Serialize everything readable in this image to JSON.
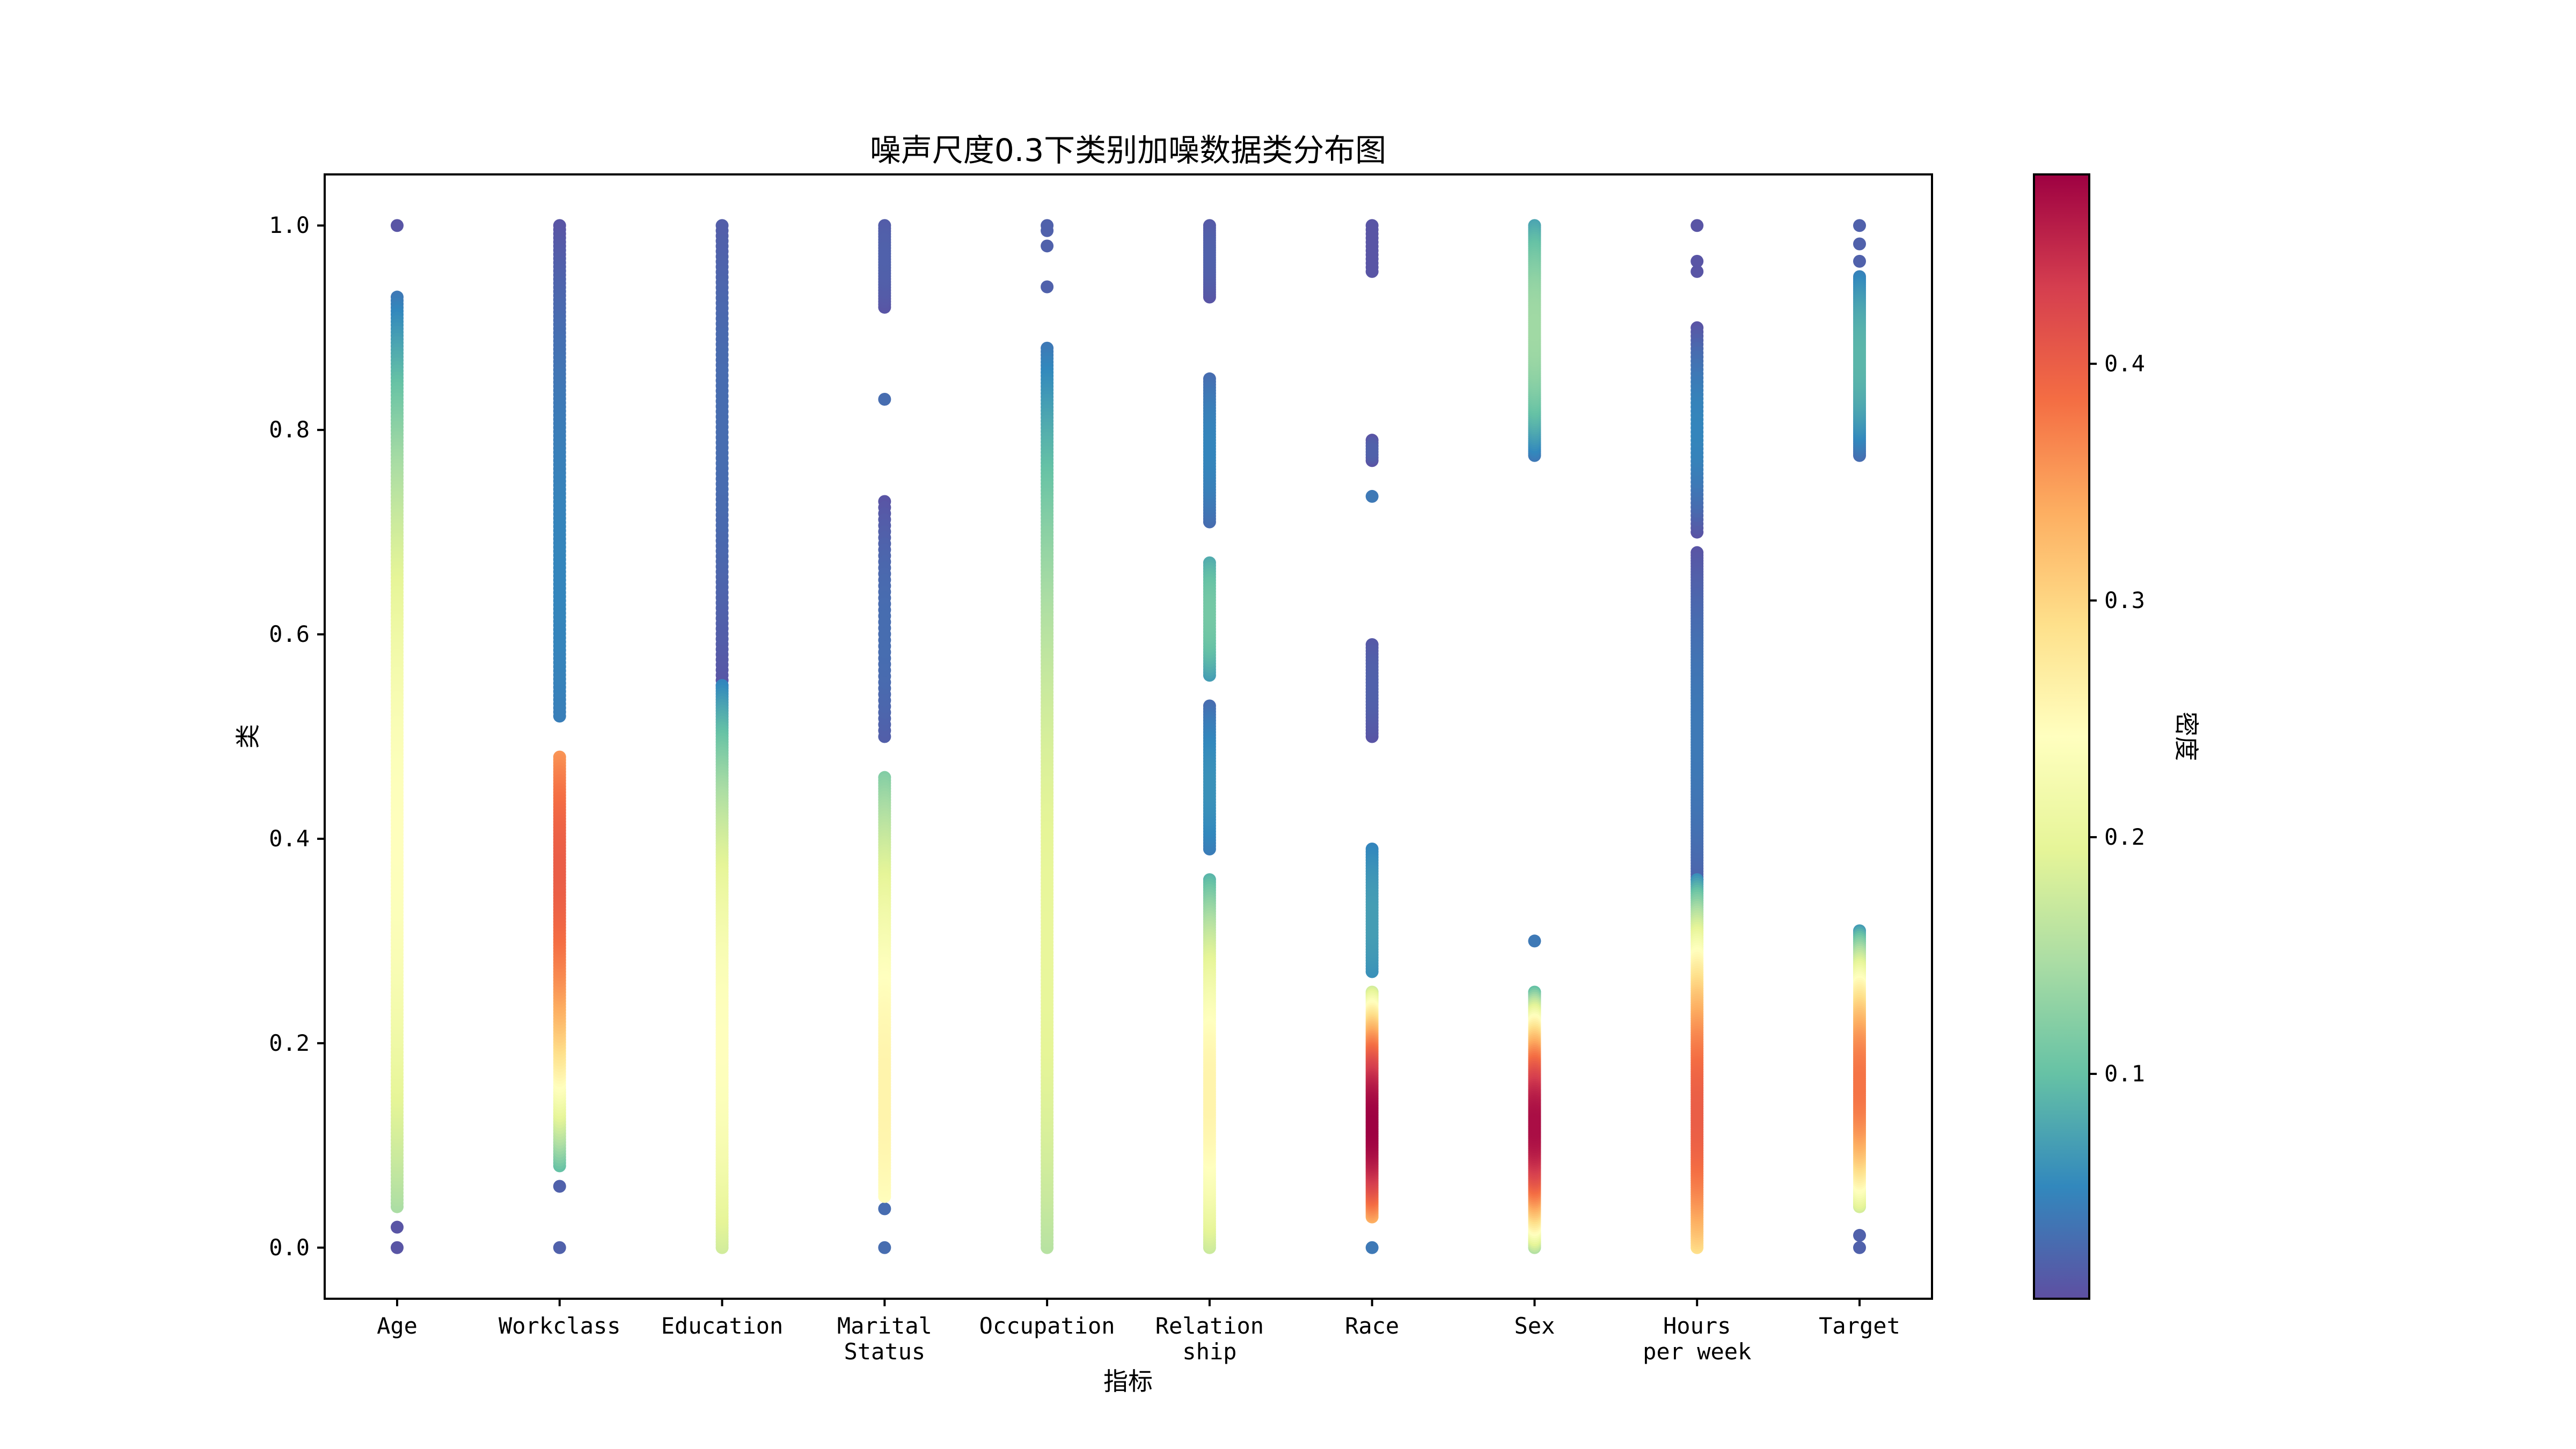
{
  "chart_data": {
    "type": "scatter",
    "title": "噪声尺度0.3下类别加噪数据类分布图",
    "xlabel": "指标",
    "ylabel": "类",
    "colorbar_label": "密度",
    "ylim": [
      -0.05,
      1.05
    ],
    "yticks": [
      "0.0",
      "0.2",
      "0.4",
      "0.6",
      "0.8",
      "1.0"
    ],
    "colorbar_range": [
      0.005,
      0.48
    ],
    "colorbar_ticks": [
      "0.1",
      "0.2",
      "0.3",
      "0.4"
    ],
    "colormap": "Spectral_r",
    "grid": false,
    "categories": [
      {
        "label": [
          "Age"
        ],
        "clusters": [
          {
            "min": 0.04,
            "max": 0.93,
            "peak": 0.4,
            "density_peak": 0.24,
            "density_edge": 0.04,
            "n": 260
          },
          {
            "values": [
              0.0,
              0.02,
              1.0
            ],
            "density": 0.01
          }
        ]
      },
      {
        "label": [
          "Workclass"
        ],
        "clusters": [
          {
            "min": 0.08,
            "max": 0.48,
            "peak": 0.37,
            "density_peak": 0.4,
            "density_edge": 0.1,
            "n": 140
          },
          {
            "min": 0.52,
            "max": 1.0,
            "peak": 0.65,
            "density_peak": 0.05,
            "density_edge": 0.01,
            "n": 120
          },
          {
            "values": [
              0.0,
              0.06
            ],
            "density": 0.02
          }
        ]
      },
      {
        "label": [
          "Education"
        ],
        "clusters": [
          {
            "min": 0.0,
            "max": 0.55,
            "peak": 0.2,
            "density_peak": 0.24,
            "density_edge": 0.05,
            "n": 200
          },
          {
            "min": 0.55,
            "max": 1.0,
            "peak": 0.8,
            "density_peak": 0.03,
            "density_edge": 0.01,
            "n": 90
          }
        ]
      },
      {
        "label": [
          "Marital",
          "Status"
        ],
        "clusters": [
          {
            "min": 0.05,
            "max": 0.46,
            "peak": 0.15,
            "density_peak": 0.26,
            "density_edge": 0.12,
            "n": 150
          },
          {
            "min": 0.5,
            "max": 0.73,
            "peak": 0.6,
            "density_peak": 0.03,
            "density_edge": 0.01,
            "n": 40
          },
          {
            "min": 0.92,
            "max": 1.0,
            "peak": 0.97,
            "density_peak": 0.02,
            "density_edge": 0.01,
            "n": 30
          },
          {
            "values": [
              0.0,
              0.038,
              0.83
            ],
            "density": 0.03
          }
        ]
      },
      {
        "label": [
          "Occupation"
        ],
        "clusters": [
          {
            "min": 0.0,
            "max": 0.88,
            "peak": 0.3,
            "density_peak": 0.2,
            "density_edge": 0.04,
            "n": 260
          },
          {
            "values": [
              0.94,
              0.98,
              0.995,
              1.0
            ],
            "density": 0.02
          }
        ]
      },
      {
        "label": [
          "Relation",
          "ship"
        ],
        "clusters": [
          {
            "min": 0.0,
            "max": 0.36,
            "peak": 0.15,
            "density_peak": 0.26,
            "density_edge": 0.09,
            "n": 140
          },
          {
            "min": 0.39,
            "max": 0.53,
            "peak": 0.45,
            "density_peak": 0.06,
            "density_edge": 0.03,
            "n": 50
          },
          {
            "min": 0.56,
            "max": 0.67,
            "peak": 0.62,
            "density_peak": 0.11,
            "density_edge": 0.07,
            "n": 40
          },
          {
            "min": 0.71,
            "max": 0.85,
            "peak": 0.78,
            "density_peak": 0.05,
            "density_edge": 0.03,
            "n": 50
          },
          {
            "min": 0.93,
            "max": 1.0,
            "peak": 0.97,
            "density_peak": 0.02,
            "density_edge": 0.01,
            "n": 30
          }
        ]
      },
      {
        "label": [
          "Race"
        ],
        "clusters": [
          {
            "min": 0.03,
            "max": 0.25,
            "peak": 0.12,
            "density_peak": 0.48,
            "density_edge": 0.18,
            "n": 130
          },
          {
            "min": 0.27,
            "max": 0.39,
            "peak": 0.32,
            "density_peak": 0.07,
            "density_edge": 0.05,
            "n": 45
          },
          {
            "min": 0.5,
            "max": 0.59,
            "peak": 0.55,
            "density_peak": 0.02,
            "density_edge": 0.01,
            "n": 30
          },
          {
            "min": 0.77,
            "max": 0.79,
            "peak": 0.78,
            "density_peak": 0.02,
            "density_edge": 0.01,
            "n": 8
          },
          {
            "min": 0.955,
            "max": 1.0,
            "peak": 0.98,
            "density_peak": 0.01,
            "density_edge": 0.01,
            "n": 12
          },
          {
            "values": [
              0.0,
              0.735
            ],
            "density": 0.04
          }
        ]
      },
      {
        "label": [
          "Sex"
        ],
        "clusters": [
          {
            "min": 0.0,
            "max": 0.25,
            "peak": 0.12,
            "density_peak": 0.47,
            "density_edge": 0.1,
            "n": 130
          },
          {
            "min": 0.775,
            "max": 1.0,
            "peak": 0.9,
            "density_peak": 0.14,
            "density_edge": 0.04,
            "n": 110
          },
          {
            "values": [
              0.3
            ],
            "density": 0.04
          }
        ]
      },
      {
        "label": [
          "Hours",
          "per week"
        ],
        "clusters": [
          {
            "min": 0.0,
            "max": 0.36,
            "peak": 0.13,
            "density_peak": 0.4,
            "density_edge": 0.06,
            "n": 160
          },
          {
            "min": 0.36,
            "max": 0.68,
            "peak": 0.5,
            "density_peak": 0.04,
            "density_edge": 0.01,
            "n": 120
          },
          {
            "min": 0.7,
            "max": 0.9,
            "peak": 0.8,
            "density_peak": 0.05,
            "density_edge": 0.01,
            "n": 50
          },
          {
            "values": [
              0.955,
              0.965,
              1.0
            ],
            "density": 0.01
          }
        ]
      },
      {
        "label": [
          "Target"
        ],
        "clusters": [
          {
            "min": 0.04,
            "max": 0.31,
            "peak": 0.16,
            "density_peak": 0.38,
            "density_edge": 0.07,
            "n": 130
          },
          {
            "min": 0.775,
            "max": 0.95,
            "peak": 0.87,
            "density_peak": 0.09,
            "density_edge": 0.03,
            "n": 90
          },
          {
            "values": [
              0.0,
              0.012,
              0.965,
              0.982,
              1.0
            ],
            "density": 0.02
          }
        ]
      }
    ]
  }
}
